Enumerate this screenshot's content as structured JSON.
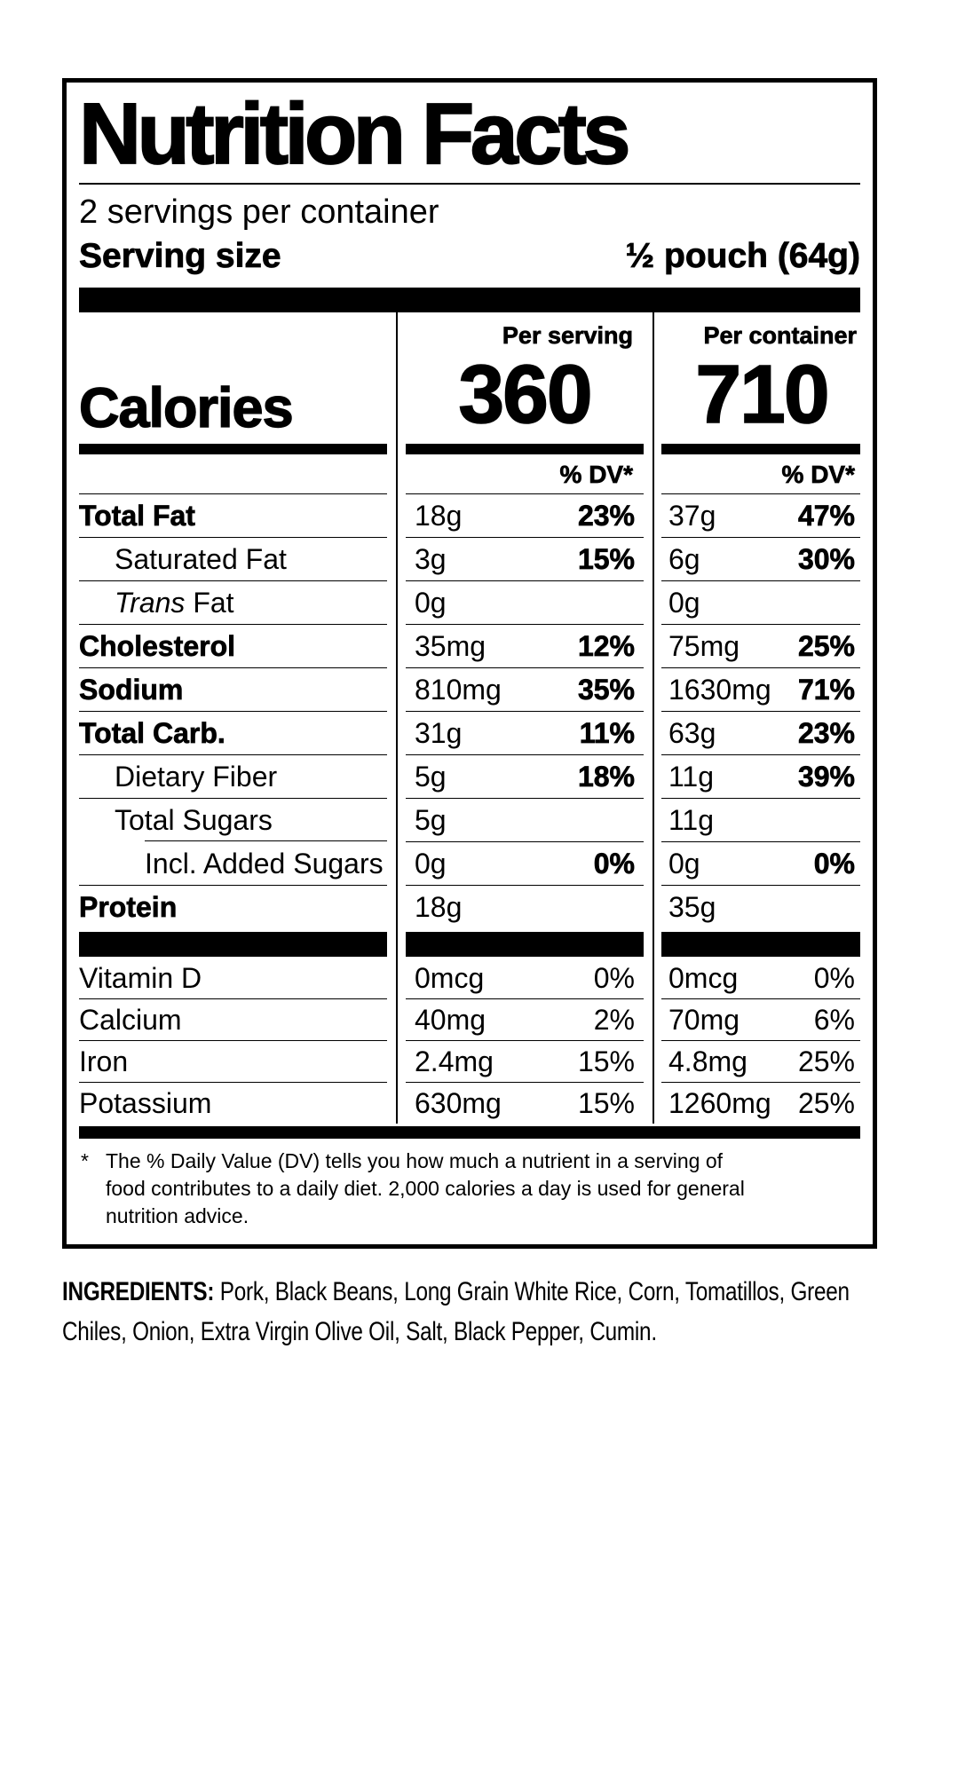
{
  "label": {
    "title": "Nutrition Facts",
    "servings_per_container": "2 servings per container",
    "serving_size": {
      "label": "Serving size",
      "value": "½ pouch (64g)"
    },
    "calories": {
      "label": "Calories",
      "per_serving_header": "Per serving",
      "per_serving_value": "360",
      "per_container_header": "Per container",
      "per_container_value": "710",
      "dv_header": "% DV*"
    },
    "nutrients": [
      {
        "name": "Total Fat",
        "bold": true,
        "indent": 0,
        "ps_amount": "18g",
        "ps_dv": "23%",
        "pc_amount": "37g",
        "pc_dv": "47%"
      },
      {
        "name": "Saturated Fat",
        "bold": false,
        "indent": 1,
        "ps_amount": "3g",
        "ps_dv": "15%",
        "pc_amount": "6g",
        "pc_dv": "30%"
      },
      {
        "name_italic": "Trans",
        "name": " Fat",
        "bold": false,
        "indent": 1,
        "ps_amount": "0g",
        "ps_dv": "",
        "pc_amount": "0g",
        "pc_dv": ""
      },
      {
        "name": "Cholesterol",
        "bold": true,
        "indent": 0,
        "ps_amount": "35mg",
        "ps_dv": "12%",
        "pc_amount": "75mg",
        "pc_dv": "25%"
      },
      {
        "name": "Sodium",
        "bold": true,
        "indent": 0,
        "ps_amount": "810mg",
        "ps_dv": "35%",
        "pc_amount": "1630mg",
        "pc_dv": "71%"
      },
      {
        "name": "Total Carb.",
        "bold": true,
        "indent": 0,
        "ps_amount": "31g",
        "ps_dv": "11%",
        "pc_amount": "63g",
        "pc_dv": "23%"
      },
      {
        "name": "Dietary Fiber",
        "bold": false,
        "indent": 1,
        "ps_amount": "5g",
        "ps_dv": "18%",
        "pc_amount": "11g",
        "pc_dv": "39%"
      },
      {
        "name": "Total Sugars",
        "bold": false,
        "indent": 1,
        "ps_amount": "5g",
        "ps_dv": "",
        "pc_amount": "11g",
        "pc_dv": ""
      },
      {
        "name": "Incl. Added Sugars",
        "bold": false,
        "indent": 2,
        "line_indent": true,
        "ps_amount": "0g",
        "ps_dv": "0%",
        "pc_amount": "0g",
        "pc_dv": "0%"
      },
      {
        "name": "Protein",
        "bold": true,
        "indent": 0,
        "ps_amount": "18g",
        "ps_dv": "",
        "pc_amount": "35g",
        "pc_dv": ""
      }
    ],
    "vitamins": [
      {
        "name": "Vitamin D",
        "ps_amount": "0mcg",
        "ps_dv": "0%",
        "pc_amount": "0mcg",
        "pc_dv": "0%"
      },
      {
        "name": "Calcium",
        "ps_amount": "40mg",
        "ps_dv": "2%",
        "pc_amount": "70mg",
        "pc_dv": "6%"
      },
      {
        "name": "Iron",
        "ps_amount": "2.4mg",
        "ps_dv": "15%",
        "pc_amount": "4.8mg",
        "pc_dv": "25%"
      },
      {
        "name": "Potassium",
        "ps_amount": "630mg",
        "ps_dv": "15%",
        "pc_amount": "1260mg",
        "pc_dv": "25%"
      }
    ],
    "footnote": {
      "marker": "*",
      "lines": [
        "The % Daily Value (DV) tells you how much a nutrient in a serving of",
        "food contributes to a daily diet. 2,000 calories a day is used for general",
        "nutrition advice."
      ]
    }
  },
  "ingredients": {
    "label": "INGREDIENTS:",
    "lines": [
      "Pork, Black Beans, Long Grain White Rice, Corn, Tomatillos, Green",
      "Chiles, Onion, Extra Virgin Olive Oil, Salt, Black Pepper, Cumin."
    ]
  }
}
